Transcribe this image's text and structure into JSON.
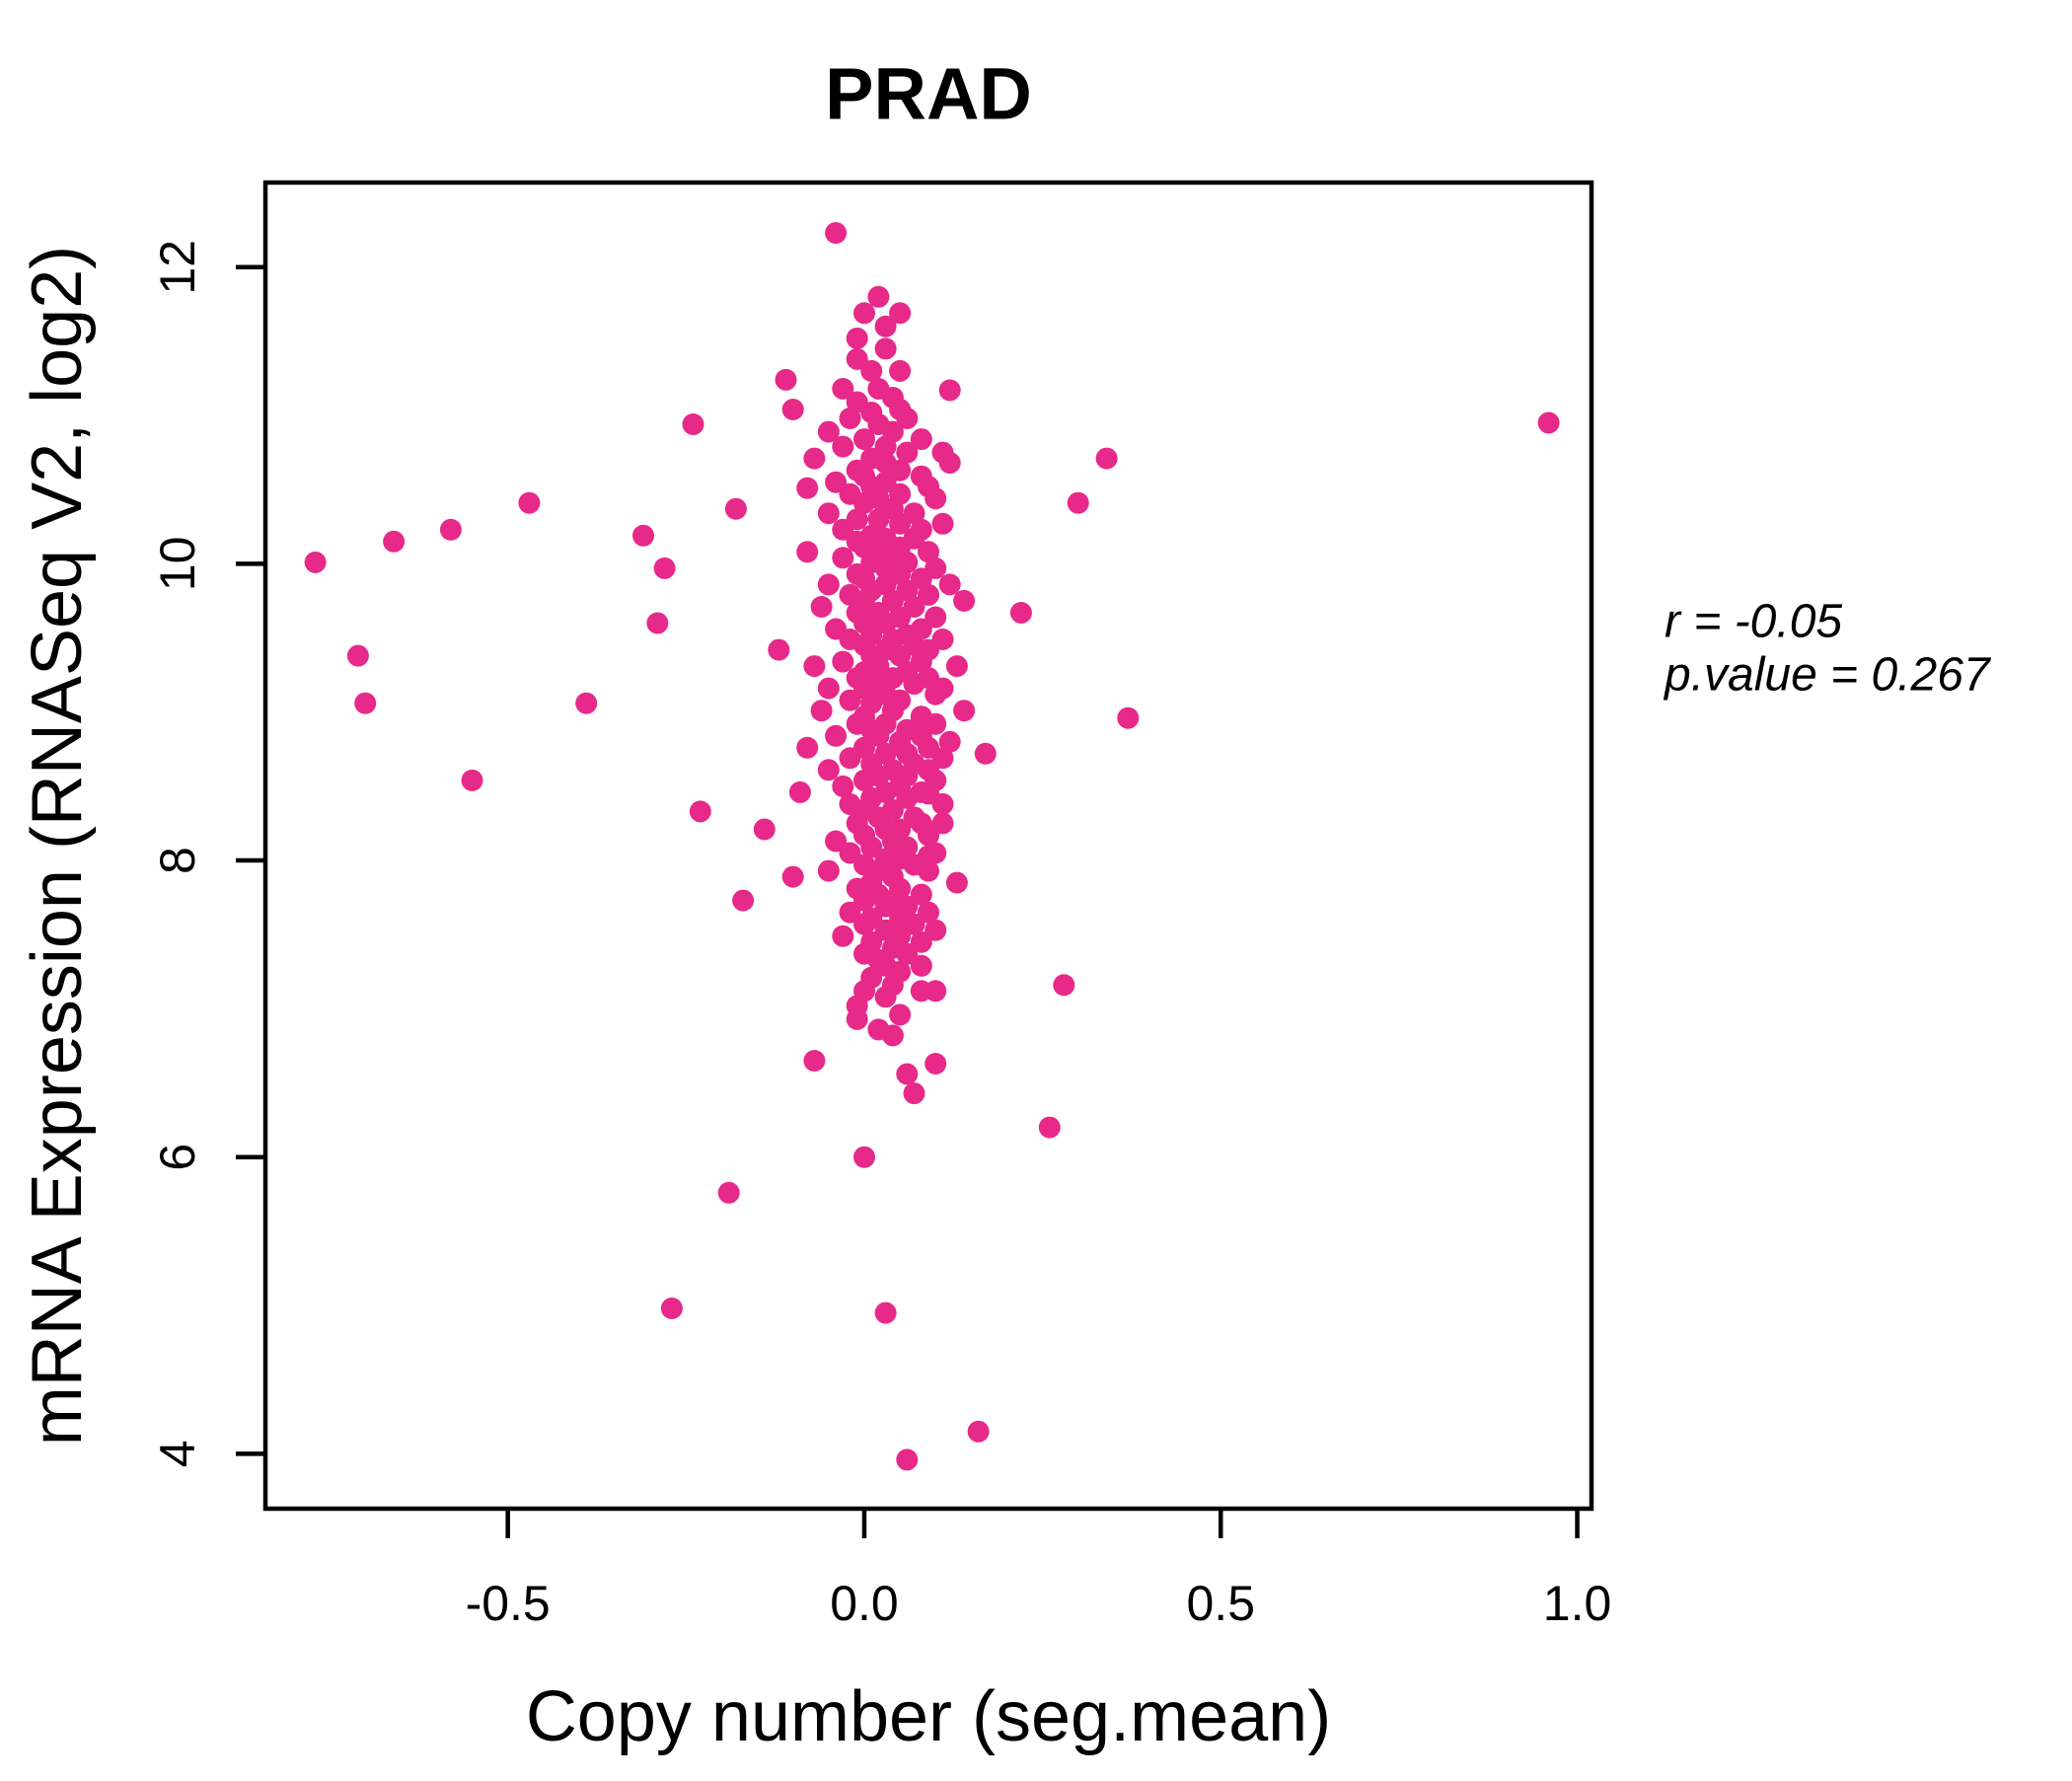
{
  "title": "PRAD",
  "annotation": {
    "r_label": "r = -0.05",
    "p_value_label": "p.value = 0.267",
    "r": -0.05,
    "p_value": 0.267
  },
  "chart_data": {
    "type": "scatter",
    "title": "PRAD",
    "xlabel": "Copy number (seg.mean)",
    "ylabel": "mRNA Expression (RNASeq V2, log2)",
    "xlim": [
      -0.84,
      1.02
    ],
    "ylim": [
      3.63,
      12.57
    ],
    "x_ticks": [
      -0.5,
      0.0,
      0.5,
      1.0
    ],
    "x_tick_labels": [
      "-0.5",
      "0.0",
      "0.5",
      "1.0"
    ],
    "y_ticks": [
      4,
      6,
      8,
      10,
      12
    ],
    "y_tick_labels": [
      "4",
      "6",
      "8",
      "10",
      "12"
    ],
    "grid": false,
    "legend": null,
    "title_color": "#E7298A",
    "point_color": "#E7298A",
    "axis_color": "#000000",
    "correlation_r": -0.05,
    "p_value": 0.267,
    "points": [
      [
        -0.04,
        12.23
      ],
      [
        0.02,
        11.8
      ],
      [
        0.0,
        11.69
      ],
      [
        0.05,
        11.69
      ],
      [
        0.03,
        11.6
      ],
      [
        -0.01,
        11.52
      ],
      [
        0.03,
        11.45
      ],
      [
        -0.01,
        11.38
      ],
      [
        0.05,
        11.3
      ],
      [
        0.01,
        11.3
      ],
      [
        -0.11,
        11.24
      ],
      [
        -0.03,
        11.18
      ],
      [
        0.02,
        11.18
      ],
      [
        0.12,
        11.17
      ],
      [
        0.04,
        11.12
      ],
      [
        -0.01,
        11.09
      ],
      [
        -0.1,
        11.04
      ],
      [
        0.05,
        11.04
      ],
      [
        0.01,
        11.02
      ],
      [
        0.06,
        10.98
      ],
      [
        -0.02,
        10.98
      ],
      [
        0.96,
        10.95
      ],
      [
        -0.24,
        10.94
      ],
      [
        0.02,
        10.94
      ],
      [
        0.04,
        10.89
      ],
      [
        -0.05,
        10.89
      ],
      [
        0.0,
        10.84
      ],
      [
        0.08,
        10.84
      ],
      [
        0.03,
        10.79
      ],
      [
        -0.03,
        10.79
      ],
      [
        0.06,
        10.75
      ],
      [
        0.11,
        10.75
      ],
      [
        0.34,
        10.71
      ],
      [
        0.01,
        10.71
      ],
      [
        -0.07,
        10.71
      ],
      [
        0.12,
        10.68
      ],
      [
        0.03,
        10.68
      ],
      [
        -0.01,
        10.63
      ],
      [
        0.05,
        10.63
      ],
      [
        0.08,
        10.59
      ],
      [
        0.0,
        10.59
      ],
      [
        -0.04,
        10.55
      ],
      [
        0.03,
        10.55
      ],
      [
        0.09,
        10.52
      ],
      [
        0.01,
        10.52
      ],
      [
        -0.08,
        10.51
      ],
      [
        0.05,
        10.47
      ],
      [
        -0.02,
        10.47
      ],
      [
        0.02,
        10.44
      ],
      [
        0.1,
        10.44
      ],
      [
        -0.47,
        10.41
      ],
      [
        0.3,
        10.41
      ],
      [
        0.0,
        10.41
      ],
      [
        -0.18,
        10.37
      ],
      [
        0.04,
        10.37
      ],
      [
        -0.05,
        10.34
      ],
      [
        0.07,
        10.34
      ],
      [
        0.02,
        10.3
      ],
      [
        -0.01,
        10.3
      ],
      [
        0.05,
        10.27
      ],
      [
        0.11,
        10.27
      ],
      [
        -0.58,
        10.23
      ],
      [
        -0.03,
        10.23
      ],
      [
        0.08,
        10.23
      ],
      [
        -0.31,
        10.19
      ],
      [
        0.01,
        10.19
      ],
      [
        0.07,
        10.17
      ],
      [
        0.03,
        10.17
      ],
      [
        -0.66,
        10.15
      ],
      [
        -0.01,
        10.15
      ],
      [
        0.05,
        10.11
      ],
      [
        0.0,
        10.11
      ],
      [
        -0.08,
        10.08
      ],
      [
        0.09,
        10.08
      ],
      [
        0.02,
        10.08
      ],
      [
        0.04,
        10.04
      ],
      [
        -0.03,
        10.04
      ],
      [
        -0.77,
        10.01
      ],
      [
        0.06,
        10.01
      ],
      [
        0.01,
        10.01
      ],
      [
        -0.28,
        9.97
      ],
      [
        0.03,
        9.97
      ],
      [
        0.1,
        9.97
      ],
      [
        -0.01,
        9.93
      ],
      [
        0.05,
        9.93
      ],
      [
        0.08,
        9.9
      ],
      [
        0.0,
        9.9
      ],
      [
        0.03,
        9.86
      ],
      [
        -0.05,
        9.86
      ],
      [
        0.12,
        9.86
      ],
      [
        0.06,
        9.82
      ],
      [
        0.01,
        9.82
      ],
      [
        -0.02,
        9.79
      ],
      [
        0.09,
        9.79
      ],
      [
        0.04,
        9.75
      ],
      [
        0.0,
        9.75
      ],
      [
        0.14,
        9.75
      ],
      [
        -0.06,
        9.71
      ],
      [
        0.07,
        9.71
      ],
      [
        0.22,
        9.67
      ],
      [
        0.02,
        9.67
      ],
      [
        -0.01,
        9.67
      ],
      [
        0.05,
        9.64
      ],
      [
        0.1,
        9.64
      ],
      [
        -0.29,
        9.6
      ],
      [
        0.0,
        9.6
      ],
      [
        0.03,
        9.6
      ],
      [
        0.08,
        9.56
      ],
      [
        -0.04,
        9.56
      ],
      [
        0.01,
        9.52
      ],
      [
        0.06,
        9.52
      ],
      [
        -0.02,
        9.49
      ],
      [
        0.11,
        9.49
      ],
      [
        0.04,
        9.49
      ],
      [
        0.07,
        9.45
      ],
      [
        0.0,
        9.45
      ],
      [
        -0.12,
        9.42
      ],
      [
        0.03,
        9.42
      ],
      [
        0.09,
        9.42
      ],
      [
        -0.71,
        9.38
      ],
      [
        0.01,
        9.38
      ],
      [
        0.05,
        9.38
      ],
      [
        -0.03,
        9.34
      ],
      [
        0.08,
        9.34
      ],
      [
        0.02,
        9.31
      ],
      [
        0.13,
        9.31
      ],
      [
        -0.07,
        9.31
      ],
      [
        0.06,
        9.27
      ],
      [
        0.0,
        9.27
      ],
      [
        0.04,
        9.23
      ],
      [
        0.09,
        9.23
      ],
      [
        -0.01,
        9.23
      ],
      [
        0.02,
        9.19
      ],
      [
        0.07,
        9.19
      ],
      [
        -0.05,
        9.16
      ],
      [
        0.11,
        9.16
      ],
      [
        0.0,
        9.16
      ],
      [
        0.1,
        9.12
      ],
      [
        0.03,
        9.12
      ],
      [
        0.05,
        9.08
      ],
      [
        -0.02,
        9.08
      ],
      [
        -0.7,
        9.06
      ],
      [
        -0.39,
        9.06
      ],
      [
        0.01,
        9.06
      ],
      [
        0.14,
        9.01
      ],
      [
        0.04,
        9.01
      ],
      [
        -0.06,
        9.01
      ],
      [
        0.0,
        8.97
      ],
      [
        0.08,
        8.97
      ],
      [
        0.37,
        8.96
      ],
      [
        0.03,
        8.92
      ],
      [
        -0.01,
        8.92
      ],
      [
        0.1,
        8.92
      ],
      [
        0.06,
        8.88
      ],
      [
        0.01,
        8.88
      ],
      [
        -0.04,
        8.84
      ],
      [
        0.08,
        8.84
      ],
      [
        0.02,
        8.84
      ],
      [
        0.05,
        8.8
      ],
      [
        0.12,
        8.8
      ],
      [
        0.09,
        8.76
      ],
      [
        0.0,
        8.76
      ],
      [
        -0.08,
        8.76
      ],
      [
        0.17,
        8.72
      ],
      [
        0.03,
        8.72
      ],
      [
        0.06,
        8.72
      ],
      [
        0.11,
        8.69
      ],
      [
        -0.02,
        8.69
      ],
      [
        0.01,
        8.65
      ],
      [
        0.07,
        8.65
      ],
      [
        0.04,
        8.61
      ],
      [
        -0.05,
        8.61
      ],
      [
        0.09,
        8.61
      ],
      [
        0.02,
        8.57
      ],
      [
        0.06,
        8.57
      ],
      [
        -0.55,
        8.54
      ],
      [
        0.0,
        8.54
      ],
      [
        0.1,
        8.54
      ],
      [
        0.05,
        8.5
      ],
      [
        -0.03,
        8.5
      ],
      [
        -0.09,
        8.46
      ],
      [
        0.03,
        8.46
      ],
      [
        0.08,
        8.46
      ],
      [
        0.09,
        8.45
      ],
      [
        0.01,
        8.42
      ],
      [
        0.06,
        8.42
      ],
      [
        -0.02,
        8.38
      ],
      [
        0.11,
        8.38
      ],
      [
        0.04,
        8.34
      ],
      [
        0.0,
        8.34
      ],
      [
        -0.23,
        8.33
      ],
      [
        0.07,
        8.29
      ],
      [
        0.02,
        8.29
      ],
      [
        0.08,
        8.25
      ],
      [
        0.11,
        8.25
      ],
      [
        -0.01,
        8.25
      ],
      [
        -0.14,
        8.21
      ],
      [
        0.03,
        8.21
      ],
      [
        0.05,
        8.21
      ],
      [
        0.0,
        8.17
      ],
      [
        0.09,
        8.17
      ],
      [
        0.04,
        8.13
      ],
      [
        -0.04,
        8.13
      ],
      [
        0.06,
        8.09
      ],
      [
        0.01,
        8.09
      ],
      [
        0.1,
        8.05
      ],
      [
        -0.02,
        8.05
      ],
      [
        0.09,
        8.03
      ],
      [
        0.03,
        8.01
      ],
      [
        0.05,
        8.01
      ],
      [
        0.0,
        7.97
      ],
      [
        0.07,
        7.97
      ],
      [
        0.09,
        7.93
      ],
      [
        0.02,
        7.93
      ],
      [
        -0.05,
        7.93
      ],
      [
        -0.1,
        7.89
      ],
      [
        0.04,
        7.89
      ],
      [
        0.13,
        7.85
      ],
      [
        0.01,
        7.85
      ],
      [
        0.05,
        7.81
      ],
      [
        -0.01,
        7.81
      ],
      [
        0.02,
        7.77
      ],
      [
        0.08,
        7.77
      ],
      [
        -0.17,
        7.73
      ],
      [
        0.04,
        7.73
      ],
      [
        0.0,
        7.73
      ],
      [
        0.06,
        7.69
      ],
      [
        0.03,
        7.69
      ],
      [
        -0.02,
        7.65
      ],
      [
        0.09,
        7.65
      ],
      [
        0.01,
        7.61
      ],
      [
        0.05,
        7.61
      ],
      [
        0.07,
        7.57
      ],
      [
        0.0,
        7.57
      ],
      [
        0.03,
        7.53
      ],
      [
        0.1,
        7.53
      ],
      [
        -0.03,
        7.49
      ],
      [
        0.05,
        7.49
      ],
      [
        0.01,
        7.45
      ],
      [
        0.08,
        7.45
      ],
      [
        0.04,
        7.41
      ],
      [
        0.06,
        7.37
      ],
      [
        0.0,
        7.37
      ],
      [
        0.02,
        7.33
      ],
      [
        0.08,
        7.29
      ],
      [
        0.03,
        7.29
      ],
      [
        0.05,
        7.25
      ],
      [
        0.01,
        7.21
      ],
      [
        0.28,
        7.16
      ],
      [
        0.04,
        7.16
      ],
      [
        0.1,
        7.12
      ],
      [
        0.08,
        7.12
      ],
      [
        0.0,
        7.12
      ],
      [
        0.03,
        7.08
      ],
      [
        -0.01,
        7.02
      ],
      [
        0.05,
        6.96
      ],
      [
        -0.01,
        6.93
      ],
      [
        0.02,
        6.86
      ],
      [
        0.04,
        6.82
      ],
      [
        -0.07,
        6.65
      ],
      [
        0.1,
        6.63
      ],
      [
        0.06,
        6.56
      ],
      [
        0.07,
        6.43
      ],
      [
        0.26,
        6.2
      ],
      [
        0.0,
        6.0
      ],
      [
        -0.19,
        5.76
      ],
      [
        -0.27,
        4.98
      ],
      [
        0.03,
        4.95
      ],
      [
        0.16,
        4.15
      ],
      [
        0.06,
        3.96
      ]
    ]
  }
}
